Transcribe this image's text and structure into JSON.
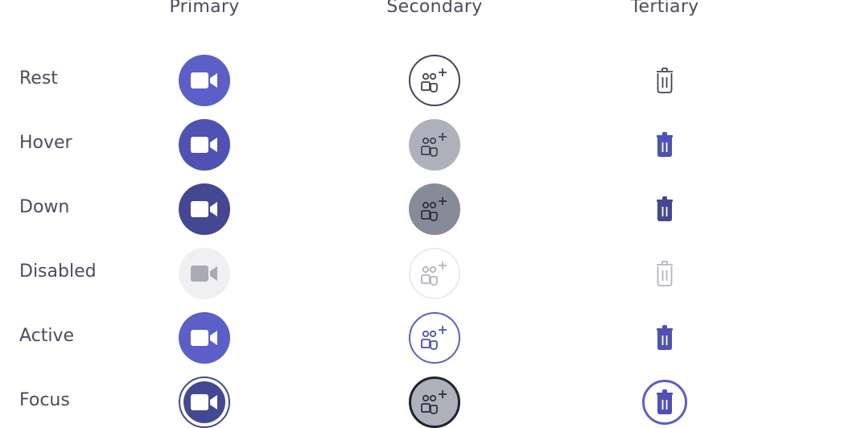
{
  "columns": {
    "primary": "Primary",
    "secondary": "Secondary",
    "tertiary": "Tertiary"
  },
  "rows": [
    {
      "label": "Rest"
    },
    {
      "label": "Hover"
    },
    {
      "label": "Down"
    },
    {
      "label": "Disabled"
    },
    {
      "label": "Active"
    },
    {
      "label": "Focus"
    }
  ],
  "icons": {
    "primary": "video-camera-icon",
    "secondary": "add-people-icon",
    "tertiary": "trash-icon"
  },
  "colors": {
    "brand": "#5b5fc7",
    "brand_hover": "#4f52b2",
    "brand_pressed": "#444791",
    "neutral_border": "#424458",
    "neutral_hover_bg": "#aeb1ba",
    "neutral_pressed_bg": "#878b98",
    "disabled_bg": "#f0f0f2",
    "disabled_fg": "#b3b5bd",
    "label_text": "#4a4d5c"
  }
}
